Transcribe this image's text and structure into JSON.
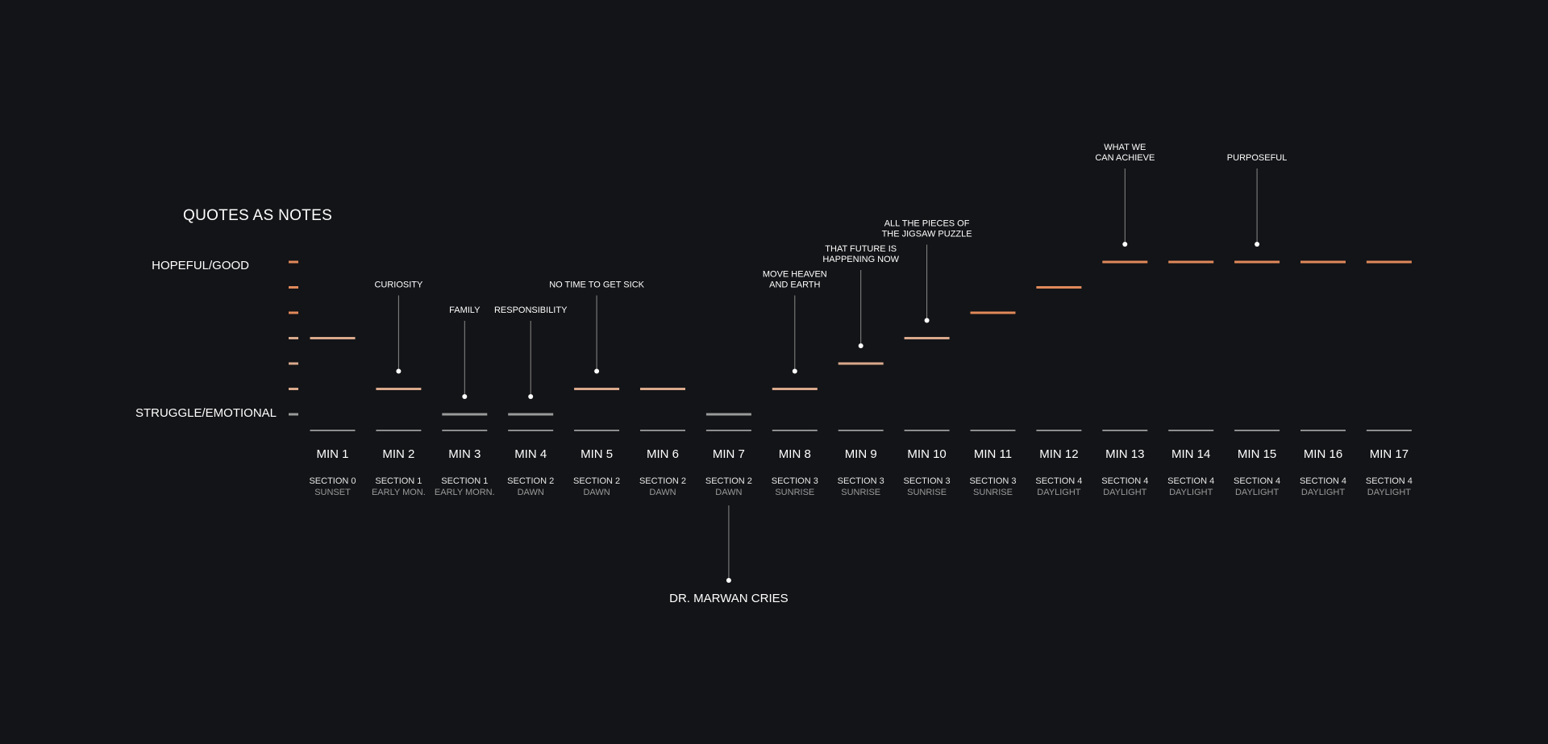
{
  "title": "QUOTES AS NOTES",
  "colors": {
    "background": "#131417",
    "hopeful": "#e0895a",
    "middle": "#d9a98c",
    "struggle": "#9a9a9a",
    "baseline": "#d8d8d8",
    "text": "#ffffff",
    "muted": "#9a9a9a"
  },
  "chart_data": {
    "type": "line",
    "title": "QUOTES AS NOTES",
    "y_axis": {
      "top_label": "HOPEFUL/GOOD",
      "bottom_label": "STRUGGLE/EMOTIONAL",
      "min": 0,
      "max": 6,
      "ticks": [
        0,
        1,
        2,
        3,
        4,
        5,
        6
      ]
    },
    "points": [
      {
        "minute": "MIN 1",
        "section": "SECTION 0",
        "phase": "SUNSET",
        "level": 3
      },
      {
        "minute": "MIN 2",
        "section": "SECTION 1",
        "phase": "EARLY MON.",
        "level": 1
      },
      {
        "minute": "MIN 3",
        "section": "SECTION 1",
        "phase": "EARLY MORN.",
        "level": 0
      },
      {
        "minute": "MIN 4",
        "section": "SECTION 2",
        "phase": "DAWN",
        "level": 0
      },
      {
        "minute": "MIN 5",
        "section": "SECTION 2",
        "phase": "DAWN",
        "level": 1
      },
      {
        "minute": "MIN 6",
        "section": "SECTION 2",
        "phase": "DAWN",
        "level": 1
      },
      {
        "minute": "MIN 7",
        "section": "SECTION 2",
        "phase": "DAWN",
        "level": 0
      },
      {
        "minute": "MIN 8",
        "section": "SECTION 3",
        "phase": "SUNRISE",
        "level": 1
      },
      {
        "minute": "MIN 9",
        "section": "SECTION 3",
        "phase": "SUNRISE",
        "level": 2
      },
      {
        "minute": "MIN 10",
        "section": "SECTION 3",
        "phase": "SUNRISE",
        "level": 3
      },
      {
        "minute": "MIN 11",
        "section": "SECTION 3",
        "phase": "SUNRISE",
        "level": 4
      },
      {
        "minute": "MIN 12",
        "section": "SECTION 4",
        "phase": "DAYLIGHT",
        "level": 5
      },
      {
        "minute": "MIN 13",
        "section": "SECTION 4",
        "phase": "DAYLIGHT",
        "level": 6
      },
      {
        "minute": "MIN 14",
        "section": "SECTION 4",
        "phase": "DAYLIGHT",
        "level": 6
      },
      {
        "minute": "MIN 15",
        "section": "SECTION 4",
        "phase": "DAYLIGHT",
        "level": 6
      },
      {
        "minute": "MIN 16",
        "section": "SECTION 4",
        "phase": "DAYLIGHT",
        "level": 6
      },
      {
        "minute": "MIN 17",
        "section": "SECTION 4",
        "phase": "DAYLIGHT",
        "level": 6
      }
    ],
    "quotes": [
      {
        "index": 1,
        "lines": [
          "CURIOSITY"
        ]
      },
      {
        "index": 2,
        "lines": [
          "FAMILY"
        ]
      },
      {
        "index": 3,
        "lines": [
          "RESPONSIBILITY"
        ]
      },
      {
        "index": 4,
        "lines": [
          "NO TIME TO GET SICK"
        ]
      },
      {
        "index": 7,
        "lines": [
          "MOVE HEAVEN",
          "AND EARTH"
        ]
      },
      {
        "index": 8,
        "lines": [
          "THAT FUTURE IS",
          "HAPPENING NOW"
        ]
      },
      {
        "index": 9,
        "lines": [
          "ALL THE PIECES OF",
          "THE JIGSAW PUZZLE"
        ]
      },
      {
        "index": 12,
        "lines": [
          "WHAT WE",
          "CAN ACHIEVE"
        ]
      },
      {
        "index": 14,
        "lines": [
          "PURPOSEFUL"
        ]
      }
    ],
    "events": [
      {
        "index": 6,
        "label": "DR. MARWAN CRIES"
      }
    ]
  }
}
